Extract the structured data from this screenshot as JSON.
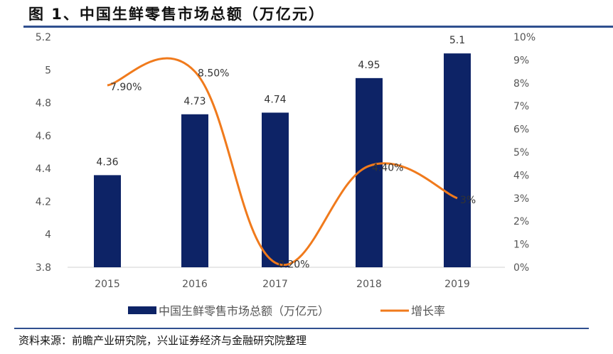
{
  "title": "图 1、中国生鲜零售市场总额（万亿元）",
  "source": "资料来源：前瞻产业研究院，兴业证券经济与金融研究院整理",
  "chart_data": {
    "type": "bar+line",
    "categories": [
      "2015",
      "2016",
      "2017",
      "2018",
      "2019"
    ],
    "series": [
      {
        "name": "中国生鲜零售市场总额（万亿元）",
        "type": "bar",
        "axis": "left",
        "values": [
          4.36,
          4.73,
          4.74,
          4.95,
          5.1
        ],
        "labels": [
          "4.36",
          "4.73",
          "4.74",
          "4.95",
          "5.1"
        ],
        "color": "#0d2366"
      },
      {
        "name": "增长率",
        "type": "line",
        "smooth": true,
        "axis": "right",
        "values": [
          7.9,
          8.5,
          0.2,
          4.4,
          3
        ],
        "labels": [
          "7.90%",
          "8.50%",
          "0.20%",
          "4.40%",
          "3%"
        ],
        "color": "#f07a1c"
      }
    ],
    "left_axis": {
      "ylim": [
        3.8,
        5.2
      ],
      "ticks": [
        "3.8",
        "4",
        "4.2",
        "4.4",
        "4.6",
        "4.8",
        "5",
        "5.2"
      ]
    },
    "right_axis": {
      "ylim": [
        0,
        10
      ],
      "ticks": [
        "0%",
        "1%",
        "2%",
        "3%",
        "4%",
        "5%",
        "6%",
        "7%",
        "8%",
        "9%",
        "10%"
      ]
    },
    "grid": false,
    "legend": "bottom"
  }
}
